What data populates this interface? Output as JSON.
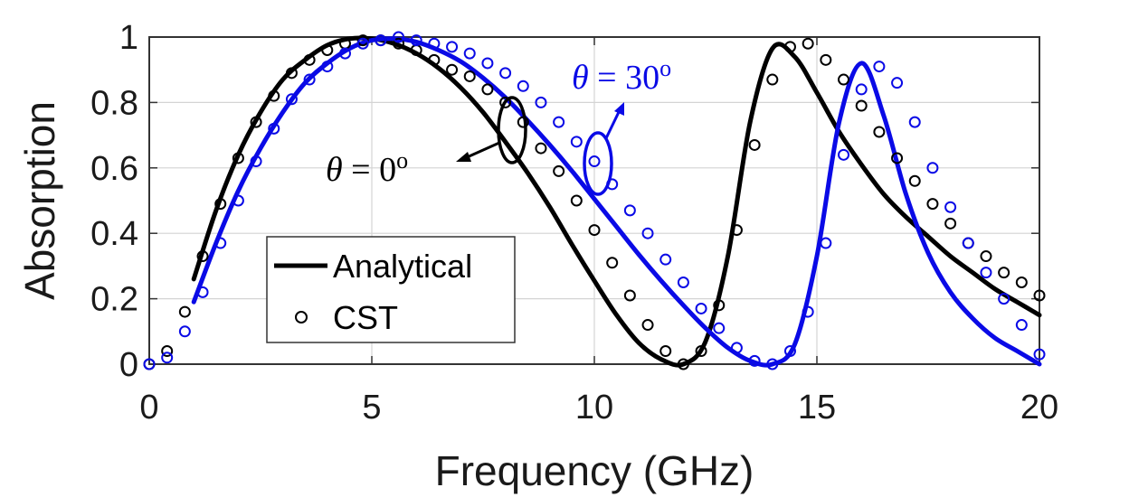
{
  "chart_data": {
    "type": "line",
    "xlabel": "Frequency (GHz)",
    "ylabel": "Absorption",
    "xlim": [
      0,
      20
    ],
    "ylim": [
      0,
      1
    ],
    "xticks": [
      0,
      5,
      10,
      15,
      20
    ],
    "yticks": [
      0,
      0.2,
      0.4,
      0.6,
      0.8,
      1
    ],
    "xtick_labels": [
      "0",
      "5",
      "10",
      "15",
      "20"
    ],
    "ytick_labels": [
      "0",
      "0.2",
      "0.4",
      "0.6",
      "0.8",
      "1"
    ],
    "grid": true,
    "legend": {
      "placement": "lower-left",
      "entries": [
        {
          "label": "Analytical",
          "marker": "line"
        },
        {
          "label": "CST",
          "marker": "circle"
        }
      ]
    },
    "colors": {
      "theta0": "#000000",
      "theta30": "#0a0ae6"
    },
    "annotations": [
      {
        "id": "theta0",
        "text_var": "θ",
        "text_rest": " = 0",
        "superscript": "o",
        "x": 8.1,
        "y": 0.71
      },
      {
        "id": "theta30",
        "text_var": "θ",
        "text_rest": " = 30",
        "superscript": "o",
        "x": 10.2,
        "y": 0.61
      }
    ],
    "series": [
      {
        "kind": "analytical",
        "group": "theta0",
        "x": [
          1,
          1.5,
          2,
          2.5,
          3,
          3.5,
          4,
          4.5,
          5,
          5.5,
          6,
          6.5,
          7,
          7.5,
          8,
          8.5,
          9,
          9.5,
          10,
          10.5,
          11,
          11.5,
          12,
          12.5,
          13,
          13.5,
          14,
          14.5,
          15,
          15.5,
          16,
          16.5,
          17,
          17.5,
          18,
          18.5,
          19,
          19.5,
          20
        ],
        "y": [
          0.26,
          0.47,
          0.64,
          0.77,
          0.87,
          0.93,
          0.975,
          0.995,
          0.995,
          0.98,
          0.95,
          0.905,
          0.845,
          0.77,
          0.68,
          0.585,
          0.48,
          0.365,
          0.255,
          0.15,
          0.065,
          0.015,
          0.0,
          0.07,
          0.33,
          0.74,
          0.965,
          0.94,
          0.83,
          0.71,
          0.61,
          0.52,
          0.45,
          0.39,
          0.33,
          0.28,
          0.23,
          0.19,
          0.15
        ]
      },
      {
        "kind": "analytical",
        "group": "theta30",
        "x": [
          1,
          1.5,
          2,
          2.5,
          3,
          3.5,
          4,
          4.5,
          5,
          5.5,
          6,
          6.5,
          7,
          7.5,
          8,
          8.5,
          9,
          9.5,
          10,
          10.5,
          11,
          11.5,
          12,
          12.5,
          13,
          13.5,
          14,
          14.5,
          15,
          15.5,
          16,
          16.5,
          17,
          17.5,
          18,
          18.5,
          19,
          19.5,
          20
        ],
        "y": [
          0.19,
          0.37,
          0.53,
          0.66,
          0.77,
          0.86,
          0.92,
          0.965,
          0.99,
          0.995,
          0.985,
          0.96,
          0.925,
          0.875,
          0.815,
          0.745,
          0.67,
          0.59,
          0.505,
          0.42,
          0.335,
          0.255,
          0.18,
          0.11,
          0.05,
          0.01,
          0.0,
          0.06,
          0.33,
          0.74,
          0.92,
          0.76,
          0.52,
          0.34,
          0.22,
          0.14,
          0.08,
          0.04,
          0.0
        ]
      },
      {
        "kind": "cst",
        "group": "theta0",
        "x": [
          0,
          0.4,
          0.8,
          1.2,
          1.6,
          2,
          2.4,
          2.8,
          3.2,
          3.6,
          4,
          4.4,
          4.8,
          5.2,
          5.6,
          6,
          6.4,
          6.8,
          7.2,
          7.6,
          8,
          8.4,
          8.8,
          9.2,
          9.6,
          10,
          10.4,
          10.8,
          11.2,
          11.6,
          12,
          12.4,
          12.8,
          13.2,
          13.6,
          14,
          14.4,
          14.8,
          15.2,
          15.6,
          16,
          16.4,
          16.8,
          17.2,
          17.6,
          18,
          18.4,
          18.8,
          19.2,
          19.6,
          20
        ],
        "y": [
          0.0,
          0.04,
          0.16,
          0.33,
          0.49,
          0.63,
          0.74,
          0.82,
          0.89,
          0.93,
          0.96,
          0.98,
          0.99,
          0.99,
          0.98,
          0.96,
          0.93,
          0.9,
          0.88,
          0.84,
          0.8,
          0.74,
          0.66,
          0.59,
          0.5,
          0.41,
          0.31,
          0.21,
          0.12,
          0.04,
          0.0,
          0.04,
          0.18,
          0.41,
          0.67,
          0.87,
          0.97,
          0.98,
          0.93,
          0.87,
          0.79,
          0.71,
          0.63,
          0.56,
          0.49,
          0.43,
          0.37,
          0.33,
          0.28,
          0.25,
          0.21
        ]
      },
      {
        "kind": "cst",
        "group": "theta30",
        "x": [
          0,
          0.4,
          0.8,
          1.2,
          1.6,
          2,
          2.4,
          2.8,
          3.2,
          3.6,
          4,
          4.4,
          4.8,
          5.2,
          5.6,
          6,
          6.4,
          6.8,
          7.2,
          7.6,
          8,
          8.4,
          8.8,
          9.2,
          9.6,
          10,
          10.4,
          10.8,
          11.2,
          11.6,
          12,
          12.4,
          12.8,
          13.2,
          13.6,
          14,
          14.4,
          14.8,
          15.2,
          15.6,
          16,
          16.4,
          16.8,
          17.2,
          17.6,
          18,
          18.4,
          18.8,
          19.2,
          19.6,
          20
        ],
        "y": [
          0.0,
          0.02,
          0.1,
          0.22,
          0.37,
          0.5,
          0.62,
          0.72,
          0.81,
          0.87,
          0.91,
          0.95,
          0.98,
          0.99,
          1.0,
          0.99,
          0.98,
          0.97,
          0.95,
          0.92,
          0.89,
          0.85,
          0.8,
          0.74,
          0.68,
          0.62,
          0.55,
          0.47,
          0.4,
          0.32,
          0.25,
          0.17,
          0.11,
          0.05,
          0.01,
          0.0,
          0.04,
          0.16,
          0.37,
          0.64,
          0.84,
          0.91,
          0.86,
          0.74,
          0.6,
          0.48,
          0.37,
          0.28,
          0.2,
          0.12,
          0.03
        ]
      }
    ]
  }
}
